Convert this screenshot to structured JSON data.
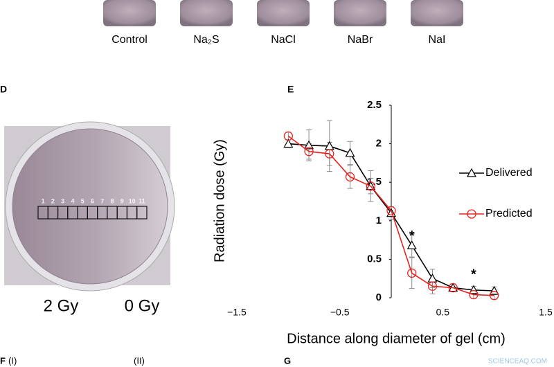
{
  "top_row": {
    "labels": [
      "Control",
      "Na₂S",
      "NaCl",
      "NaBr",
      "NaI"
    ]
  },
  "panel_d": {
    "label": "D",
    "cells": [
      "1",
      "2",
      "3",
      "4",
      "5",
      "6",
      "7",
      "8",
      "9",
      "10",
      "11"
    ],
    "left_dose": "2 Gy",
    "right_dose": "0 Gy"
  },
  "panel_f": {
    "label": "F",
    "part_one": "(I)",
    "part_two": "(II)"
  },
  "panel_g": {
    "label": "G"
  },
  "watermark": "SCIENCEAQ.COM",
  "chart_data": {
    "type": "line",
    "panel": "E",
    "y_label": "Radiation dose (Gy)",
    "x_label": "Distance along diameter of gel (cm)",
    "xlim": [
      -1.5,
      1.5
    ],
    "xticks": [
      {
        "value": -1.5,
        "label": "−1.5"
      },
      {
        "value": -0.5,
        "label": "−0.5"
      },
      0.5,
      1.5
    ],
    "ylim": [
      0,
      2.5
    ],
    "yticks": [
      0,
      0.5,
      1,
      1.5,
      2,
      2.5
    ],
    "x": [
      -1,
      -0.8,
      -0.6,
      -0.4,
      -0.2,
      0,
      0.2,
      0.4,
      0.6,
      0.8,
      1
    ],
    "series": [
      {
        "name": "Delivered",
        "color": "#000000",
        "marker": "triangle",
        "values": [
          2.0,
          1.98,
          1.97,
          1.88,
          1.45,
          1.1,
          0.68,
          0.25,
          0.13,
          0.1,
          0.09
        ],
        "errors": [
          0.05,
          0.2,
          0.33,
          0.15,
          0.2,
          0.08,
          0.15,
          0.12,
          0.05,
          0.05,
          0.05
        ]
      },
      {
        "name": "Predicted",
        "color": "#e8231f",
        "marker": "circle",
        "values": [
          2.1,
          1.9,
          1.87,
          1.57,
          1.45,
          1.13,
          0.32,
          0.15,
          0.13,
          0.04,
          0.03
        ],
        "errors": [
          0.05,
          0.1,
          0.15,
          0.15,
          0.1,
          0.05,
          0.2,
          0.1,
          0.05,
          0.05,
          0.05
        ]
      }
    ],
    "annotations": [
      {
        "text": "*",
        "x": 0.2,
        "y": 0.85
      },
      {
        "text": "*",
        "x": 0.8,
        "y": 0.35
      }
    ],
    "legend": "right"
  }
}
